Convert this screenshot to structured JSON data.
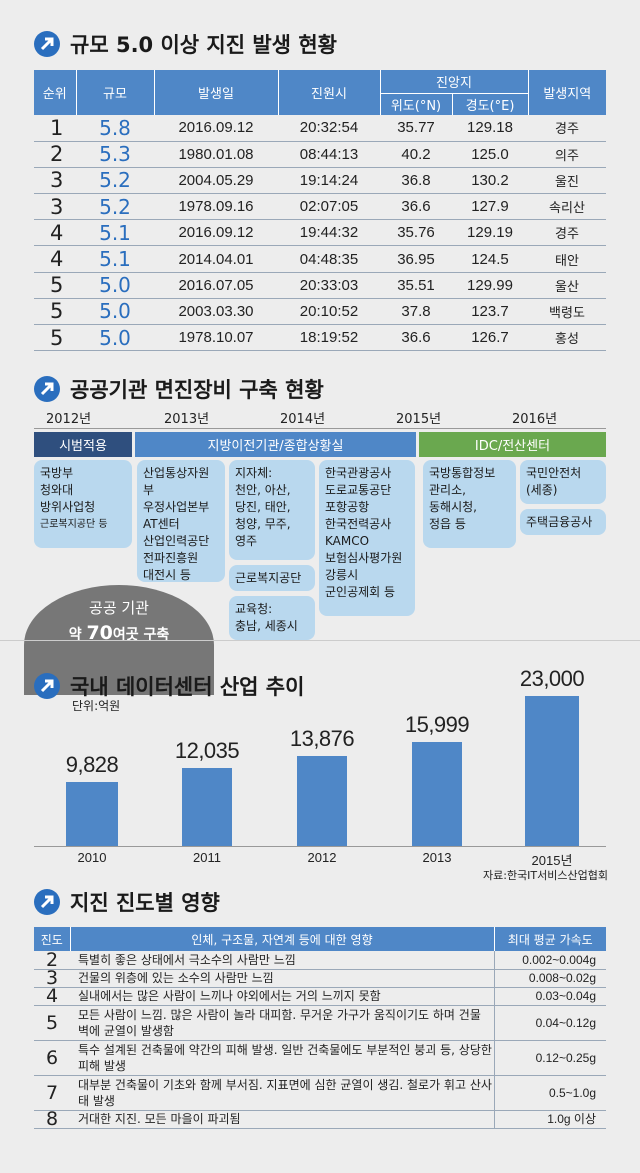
{
  "colors": {
    "accent": "#4f87c7",
    "dark_label": "#2f4f7e",
    "green_label": "#6aa84f",
    "box": "#b9d8ee",
    "oval": "#777777"
  },
  "section1": {
    "title": "규모 5.0 이상 지진 발생 현황",
    "headers": {
      "rank": "순위",
      "magnitude": "규모",
      "date": "발생일",
      "time": "진원시",
      "epicenter": "진앙지",
      "lat": "위도(°N)",
      "lon": "경도(°E)",
      "region": "발생지역"
    },
    "rows": [
      {
        "rank": "1",
        "mag": "5.8",
        "date": "2016.09.12",
        "time": "20:32:54",
        "lat": "35.77",
        "lon": "129.18",
        "region": "경주"
      },
      {
        "rank": "2",
        "mag": "5.3",
        "date": "1980.01.08",
        "time": "08:44:13",
        "lat": "40.2",
        "lon": "125.0",
        "region": "의주"
      },
      {
        "rank": "3",
        "mag": "5.2",
        "date": "2004.05.29",
        "time": "19:14:24",
        "lat": "36.8",
        "lon": "130.2",
        "region": "울진"
      },
      {
        "rank": "3",
        "mag": "5.2",
        "date": "1978.09.16",
        "time": "02:07:05",
        "lat": "36.6",
        "lon": "127.9",
        "region": "속리산"
      },
      {
        "rank": "4",
        "mag": "5.1",
        "date": "2016.09.12",
        "time": "19:44:32",
        "lat": "35.76",
        "lon": "129.19",
        "region": "경주"
      },
      {
        "rank": "4",
        "mag": "5.1",
        "date": "2014.04.01",
        "time": "04:48:35",
        "lat": "36.95",
        "lon": "124.5",
        "region": "태안"
      },
      {
        "rank": "5",
        "mag": "5.0",
        "date": "2016.07.05",
        "time": "20:33:03",
        "lat": "35.51",
        "lon": "129.99",
        "region": "울산"
      },
      {
        "rank": "5",
        "mag": "5.0",
        "date": "2003.03.30",
        "time": "20:10:52",
        "lat": "37.8",
        "lon": "123.7",
        "region": "백령도"
      },
      {
        "rank": "5",
        "mag": "5.0",
        "date": "1978.10.07",
        "time": "18:19:52",
        "lat": "36.6",
        "lon": "126.7",
        "region": "홍성"
      }
    ]
  },
  "section2": {
    "title": "공공기관 면진장비 구축 현황",
    "years": [
      "2012년",
      "2013년",
      "2014년",
      "2015년",
      "2016년"
    ],
    "phases": [
      "시범적용",
      "지방이전기관/종합상황실",
      "IDC/전산센터"
    ],
    "boxes": {
      "b1": "국방부\n청와대\n방위사업청",
      "b1_small": "근로복지공단 등",
      "b2": "산업통상자원부\n우정사업본부\nAT센터\n산업인력공단\n전파진흥원\n대전시 등",
      "b3": "지자체:\n천안, 아산,\n당진, 태안,\n청양, 무주,\n영주",
      "b4": "근로복지공단",
      "b5": "교육청:\n충남, 세종시",
      "b6": "한국관광공사\n도로교통공단\n포항공항\n한국전력공사\nKAMCO\n보험심사평가원\n강릉시\n군인공제회 등",
      "b7": "국방통합정보\n관리소,\n동해시청,\n정읍 등",
      "b8": "국민안전처\n(세종)",
      "b9": "주택금융공사"
    },
    "oval_line1": "공공 기관",
    "oval_prefix": "약 ",
    "oval_num": "70",
    "oval_suffix": "여곳 구축"
  },
  "section3": {
    "title": "국내 데이터센터 산업 추이",
    "unit": "단위:억원",
    "source": "자료:한국IT서비스산업협회"
  },
  "chart_data": {
    "type": "bar",
    "title": "국내 데이터센터 산업 추이",
    "ylabel": "단위:억원",
    "categories": [
      "2010",
      "2011",
      "2012",
      "2013",
      "2015년"
    ],
    "values": [
      9828,
      12035,
      13876,
      15999,
      23000
    ],
    "value_labels": [
      "9,828",
      "12,035",
      "13,876",
      "15,999",
      "23,000"
    ],
    "ylim": [
      0,
      23000
    ],
    "grid": false
  },
  "section4": {
    "title": "지진 진도별 영향",
    "headers": {
      "level": "진도",
      "effect": "인체, 구조물, 자연계 등에 대한 영향",
      "accel": "최대 평균 가속도"
    },
    "rows": [
      {
        "level": "2",
        "effect": "특별히 좋은 상태에서 극소수의 사람만 느낌",
        "accel": "0.002~0.004g"
      },
      {
        "level": "3",
        "effect": "건물의 위층에 있는 소수의 사람만 느낌",
        "accel": "0.008~0.02g"
      },
      {
        "level": "4",
        "effect": "실내에서는 많은 사람이 느끼나 야외에서는 거의 느끼지 못함",
        "accel": "0.03~0.04g"
      },
      {
        "level": "5",
        "effect": "모든 사람이 느낌. 많은 사람이 놀라 대피함. 무거운 가구가 움직이기도 하며 건물 벽에 균열이 발생함",
        "accel": "0.04~0.12g"
      },
      {
        "level": "6",
        "effect": "특수 설계된 건축물에 약간의 피해 발생. 일반 건축물에도 부분적인 붕괴 등, 상당한 피해 발생",
        "accel": "0.12~0.25g"
      },
      {
        "level": "7",
        "effect": "대부분 건축물이 기초와 함께 부서짐. 지표면에 심한 균열이 생김. 철로가 휘고 산사태 발생",
        "accel": "0.5~1.0g"
      },
      {
        "level": "8",
        "effect": "거대한 지진. 모든 마을이 파괴됨",
        "accel": "1.0g 이상"
      }
    ]
  }
}
